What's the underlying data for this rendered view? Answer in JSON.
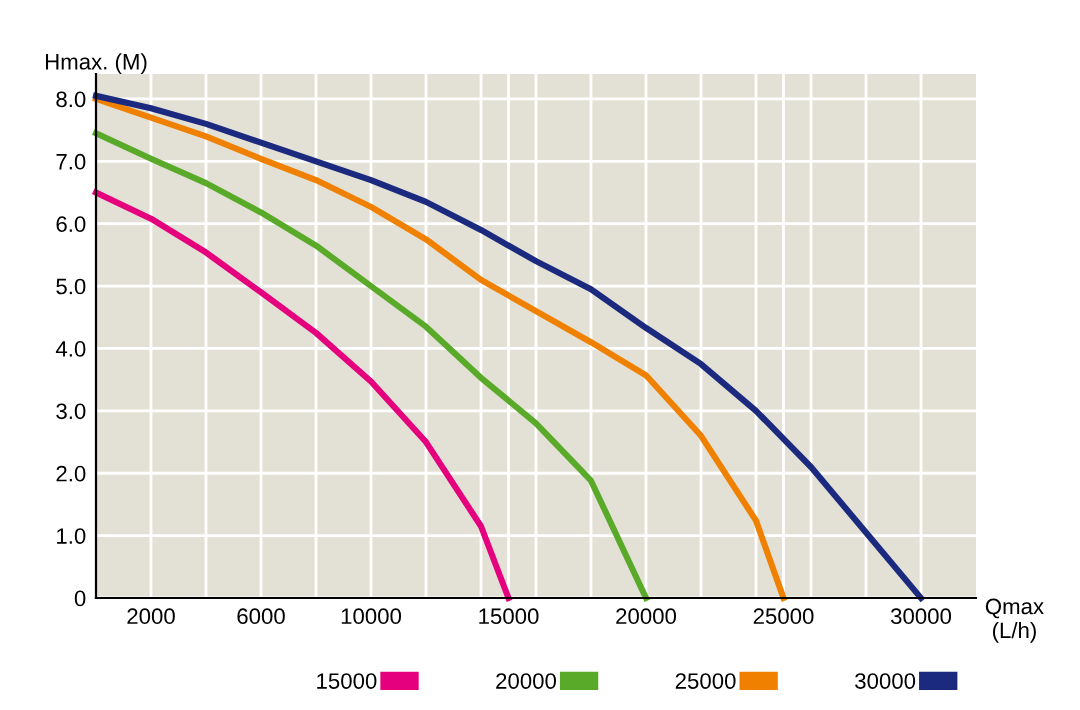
{
  "chart_data": {
    "type": "line",
    "xlabel": "Qmax\n(L/h)",
    "ylabel": "Hmax. (M)",
    "xlim": [
      0,
      32000
    ],
    "ylim": [
      0,
      8.4
    ],
    "xticks": [
      2000,
      {
        "value": 4000,
        "label": null
      },
      6000,
      {
        "value": 8000,
        "label": null
      },
      10000,
      {
        "value": 12000,
        "label": null
      },
      {
        "value": 14000,
        "label": null
      },
      15000,
      {
        "value": 16000,
        "label": null
      },
      {
        "value": 18000,
        "label": null
      },
      20000,
      {
        "value": 22000,
        "label": null
      },
      {
        "value": 24000,
        "label": null
      },
      25000,
      {
        "value": 26000,
        "label": null
      },
      {
        "value": 28000,
        "label": null
      },
      30000
    ],
    "yticks": [
      0,
      {
        "value": 1,
        "label": "1.0"
      },
      {
        "value": 2,
        "label": "2.0"
      },
      {
        "value": 3,
        "label": "3.0"
      },
      {
        "value": 4,
        "label": "4.0"
      },
      {
        "value": 5,
        "label": "5.0"
      },
      {
        "value": 6,
        "label": "6.0"
      },
      {
        "value": 7,
        "label": "7.0"
      },
      {
        "value": 8,
        "label": "8.0"
      }
    ],
    "grid": true,
    "legend": "bottom right",
    "marker": "none",
    "line_style": "solid",
    "series": [
      {
        "name": "15000",
        "color": "#e5007e",
        "x": [
          0,
          2000,
          4000,
          6000,
          8000,
          10000,
          12000,
          14000,
          15000
        ],
        "values": [
          6.5,
          6.08,
          5.54,
          4.9,
          4.25,
          3.47,
          2.5,
          1.15,
          0
        ]
      },
      {
        "name": "20000",
        "color": "#5aaa2a",
        "x": [
          0,
          2000,
          4000,
          6000,
          8000,
          10000,
          12000,
          14000,
          16000,
          18000,
          20000
        ],
        "values": [
          7.45,
          7.04,
          6.65,
          6.18,
          5.65,
          5.0,
          4.35,
          3.53,
          2.8,
          1.88,
          0
        ]
      },
      {
        "name": "25000",
        "color": "#f08000",
        "x": [
          0,
          2000,
          4000,
          6000,
          8000,
          10000,
          12000,
          14000,
          16000,
          18000,
          20000,
          22000,
          24000,
          25000
        ],
        "values": [
          8.0,
          7.7,
          7.4,
          7.04,
          6.7,
          6.27,
          5.75,
          5.1,
          4.6,
          4.1,
          3.57,
          2.6,
          1.24,
          0
        ]
      },
      {
        "name": "30000",
        "color": "#1b2a7e",
        "x": [
          0,
          2000,
          4000,
          6000,
          8000,
          10000,
          12000,
          14000,
          16000,
          18000,
          20000,
          22000,
          24000,
          26000,
          28000,
          30000
        ],
        "values": [
          8.05,
          7.85,
          7.6,
          7.3,
          7.0,
          6.7,
          6.35,
          5.9,
          5.4,
          4.95,
          4.33,
          3.75,
          3.0,
          2.1,
          1.05,
          0
        ]
      }
    ]
  }
}
